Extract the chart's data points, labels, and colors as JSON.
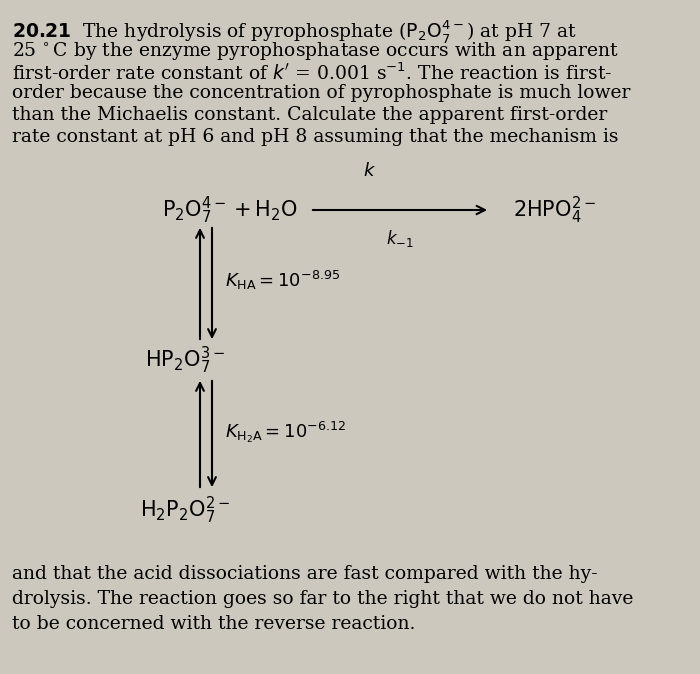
{
  "bg_color": "#ccc8be",
  "text_color": "#000000",
  "fig_width": 7.0,
  "fig_height": 6.74,
  "top_lines": [
    "\\textbf{20.21}\\quad The hydrolysis of pyrophosphate ($\\mathrm{P_2O_7^{4-}}$) at pH 7 at",
    "25\\,${^\\circ}$C by the enzyme pyrophosphatase occurs with an apparent",
    "first-order rate constant of $k^{\\prime}$ = 0.001 s$^{-1}$. The reaction is first-",
    "order because the concentration of pyrophosphate is much lower",
    "than the Michaelis constant. Calculate the apparent first-order",
    "rate constant at pH 6 and pH 8 assuming that the mechanism is"
  ],
  "bottom_lines": [
    "and that the acid dissociations are fast compared with the hy-",
    "drolysis. The reaction goes so far to the right that we do not have",
    "to be concerned with the reverse reaction."
  ]
}
